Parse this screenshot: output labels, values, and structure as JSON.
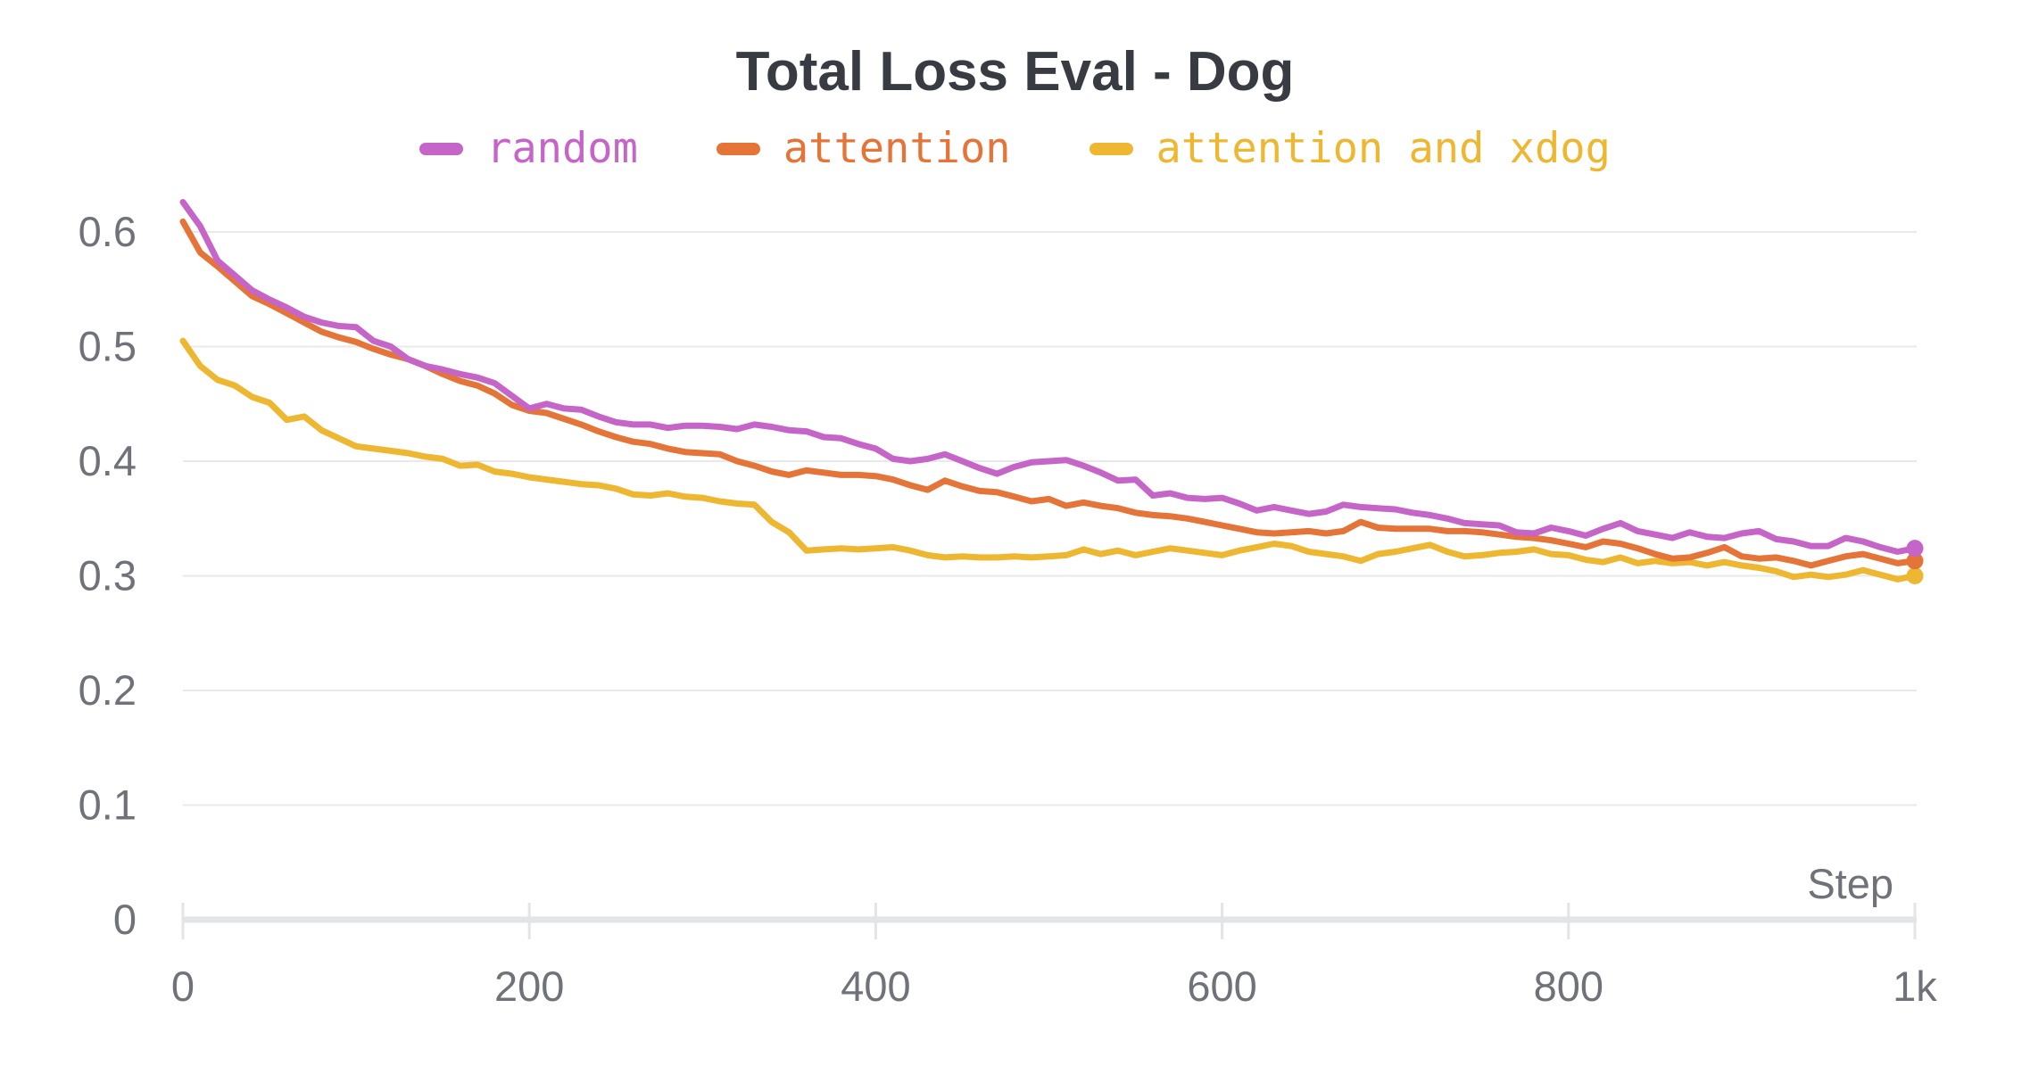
{
  "colors": {
    "title_text": "#383b41",
    "axis_text": "#70727a",
    "gridline": "#e9e9eb",
    "axis_line": "#e3e4e6",
    "background": "#ffffff"
  },
  "chart_data": {
    "type": "line",
    "title": "Total Loss Eval - Dog",
    "xlabel": "Step",
    "ylabel": "",
    "grid": true,
    "legend_position": "top-center",
    "xlim": [
      0,
      1000
    ],
    "ylim": [
      0,
      0.66
    ],
    "x_ticks": {
      "values": [
        0,
        200,
        400,
        600,
        800,
        1000
      ],
      "labels": [
        "0",
        "200",
        "400",
        "600",
        "800",
        "1k"
      ]
    },
    "y_ticks": {
      "values": [
        0,
        0.1,
        0.2,
        0.3,
        0.4,
        0.5,
        0.6
      ],
      "labels": [
        "0",
        "0.1",
        "0.2",
        "0.3",
        "0.4",
        "0.5",
        "0.6"
      ]
    },
    "end_point_markers": true,
    "x": [
      0,
      10,
      20,
      30,
      40,
      50,
      60,
      70,
      80,
      90,
      100,
      110,
      120,
      130,
      140,
      150,
      160,
      170,
      180,
      190,
      200,
      210,
      220,
      230,
      240,
      250,
      260,
      270,
      280,
      290,
      300,
      310,
      320,
      330,
      340,
      350,
      360,
      370,
      380,
      390,
      400,
      410,
      420,
      430,
      440,
      450,
      460,
      470,
      480,
      490,
      500,
      510,
      520,
      530,
      540,
      550,
      560,
      570,
      580,
      590,
      600,
      610,
      620,
      630,
      640,
      650,
      660,
      670,
      680,
      690,
      700,
      710,
      720,
      730,
      740,
      750,
      760,
      770,
      780,
      790,
      800,
      810,
      820,
      830,
      840,
      850,
      860,
      870,
      880,
      890,
      900,
      910,
      920,
      930,
      940,
      950,
      960,
      970,
      980,
      990,
      1000
    ],
    "series": [
      {
        "name": "random",
        "color": "#C565C7",
        "values": [
          0.626,
          0.605,
          0.575,
          0.562,
          0.549,
          0.541,
          0.534,
          0.526,
          0.521,
          0.518,
          0.517,
          0.505,
          0.5,
          0.489,
          0.483,
          0.48,
          0.476,
          0.473,
          0.468,
          0.457,
          0.446,
          0.45,
          0.446,
          0.445,
          0.439,
          0.434,
          0.432,
          0.432,
          0.429,
          0.431,
          0.431,
          0.43,
          0.428,
          0.432,
          0.43,
          0.427,
          0.426,
          0.421,
          0.42,
          0.415,
          0.411,
          0.402,
          0.4,
          0.402,
          0.406,
          0.4,
          0.394,
          0.389,
          0.395,
          0.399,
          0.4,
          0.401,
          0.396,
          0.39,
          0.383,
          0.384,
          0.37,
          0.372,
          0.368,
          0.367,
          0.368,
          0.363,
          0.357,
          0.36,
          0.357,
          0.354,
          0.356,
          0.362,
          0.36,
          0.359,
          0.358,
          0.355,
          0.353,
          0.35,
          0.346,
          0.345,
          0.344,
          0.338,
          0.337,
          0.342,
          0.339,
          0.335,
          0.341,
          0.346,
          0.339,
          0.336,
          0.333,
          0.338,
          0.334,
          0.333,
          0.337,
          0.339,
          0.332,
          0.33,
          0.326,
          0.326,
          0.333,
          0.33,
          0.325,
          0.321,
          0.324
        ]
      },
      {
        "name": "attention",
        "color": "#E57439",
        "values": [
          0.609,
          0.582,
          0.57,
          0.557,
          0.544,
          0.537,
          0.529,
          0.521,
          0.513,
          0.508,
          0.504,
          0.498,
          0.493,
          0.489,
          0.483,
          0.476,
          0.47,
          0.466,
          0.459,
          0.449,
          0.444,
          0.442,
          0.437,
          0.432,
          0.426,
          0.421,
          0.417,
          0.415,
          0.411,
          0.408,
          0.407,
          0.406,
          0.4,
          0.396,
          0.391,
          0.388,
          0.392,
          0.39,
          0.388,
          0.388,
          0.387,
          0.384,
          0.379,
          0.375,
          0.383,
          0.378,
          0.374,
          0.373,
          0.369,
          0.365,
          0.367,
          0.361,
          0.364,
          0.361,
          0.359,
          0.355,
          0.353,
          0.352,
          0.35,
          0.347,
          0.344,
          0.341,
          0.338,
          0.337,
          0.338,
          0.339,
          0.337,
          0.339,
          0.347,
          0.342,
          0.341,
          0.341,
          0.341,
          0.339,
          0.339,
          0.338,
          0.336,
          0.334,
          0.333,
          0.331,
          0.328,
          0.325,
          0.33,
          0.328,
          0.324,
          0.319,
          0.315,
          0.316,
          0.32,
          0.325,
          0.317,
          0.315,
          0.316,
          0.313,
          0.309,
          0.313,
          0.317,
          0.319,
          0.315,
          0.311,
          0.313
        ]
      },
      {
        "name": "attention and xdog",
        "color": "#EDB732",
        "values": [
          0.505,
          0.483,
          0.471,
          0.466,
          0.456,
          0.451,
          0.436,
          0.439,
          0.427,
          0.42,
          0.413,
          0.411,
          0.409,
          0.407,
          0.404,
          0.402,
          0.396,
          0.397,
          0.391,
          0.389,
          0.386,
          0.384,
          0.382,
          0.38,
          0.379,
          0.376,
          0.371,
          0.37,
          0.372,
          0.369,
          0.368,
          0.365,
          0.363,
          0.362,
          0.347,
          0.338,
          0.322,
          0.323,
          0.324,
          0.323,
          0.324,
          0.325,
          0.322,
          0.318,
          0.316,
          0.317,
          0.316,
          0.316,
          0.317,
          0.316,
          0.317,
          0.318,
          0.323,
          0.319,
          0.322,
          0.318,
          0.321,
          0.324,
          0.322,
          0.32,
          0.318,
          0.322,
          0.325,
          0.328,
          0.326,
          0.321,
          0.319,
          0.317,
          0.313,
          0.319,
          0.321,
          0.324,
          0.327,
          0.321,
          0.317,
          0.318,
          0.32,
          0.321,
          0.323,
          0.319,
          0.318,
          0.314,
          0.312,
          0.316,
          0.311,
          0.313,
          0.311,
          0.312,
          0.309,
          0.312,
          0.309,
          0.307,
          0.304,
          0.299,
          0.301,
          0.299,
          0.301,
          0.305,
          0.301,
          0.297,
          0.3
        ]
      }
    ]
  }
}
